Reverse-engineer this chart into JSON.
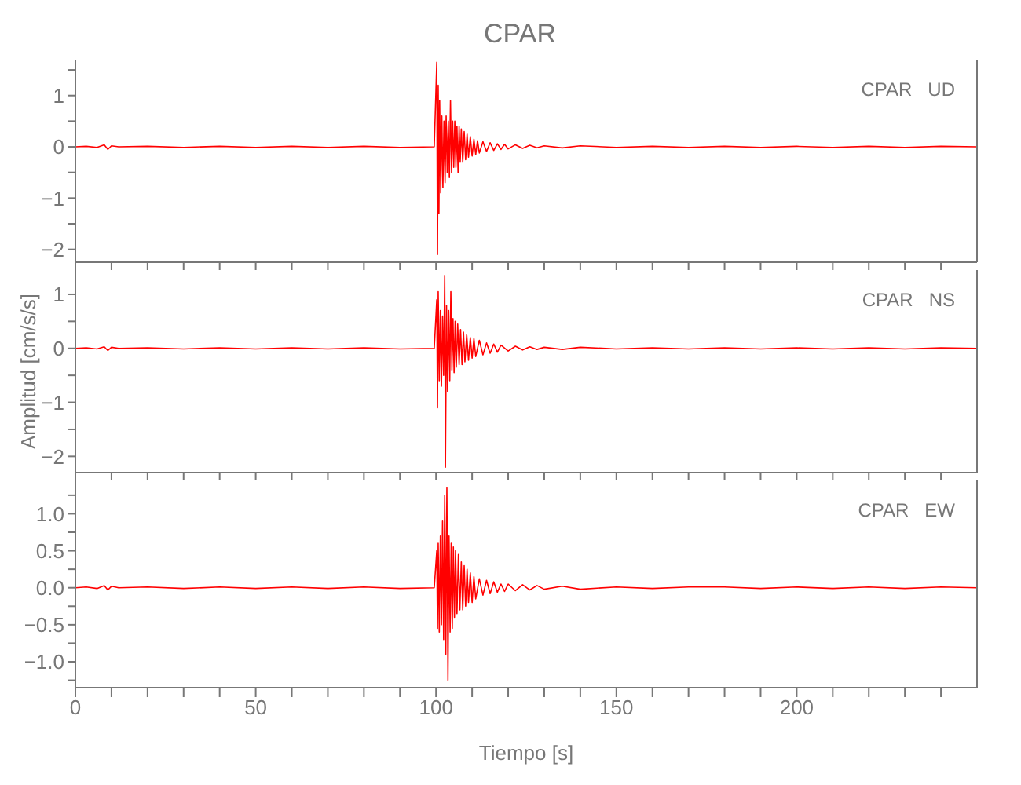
{
  "chart_data": [
    {
      "type": "line",
      "title": "CPAR",
      "annotations": [
        "CPAR   UD"
      ],
      "color": "#ff0000",
      "tick_labels": "y",
      "xlim": [
        0,
        250
      ],
      "ylim": [
        -2.25,
        1.7
      ],
      "xticks": [
        0,
        {
          "value": 10,
          "label": null
        },
        {
          "value": 20,
          "label": null
        },
        {
          "value": 30,
          "label": null
        },
        {
          "value": 40,
          "label": null
        },
        50,
        {
          "value": 60,
          "label": null
        },
        {
          "value": 70,
          "label": null
        },
        {
          "value": 80,
          "label": null
        },
        {
          "value": 90,
          "label": null
        },
        100,
        {
          "value": 110,
          "label": null
        },
        {
          "value": 120,
          "label": null
        },
        {
          "value": 130,
          "label": null
        },
        {
          "value": 140,
          "label": null
        },
        150,
        {
          "value": 160,
          "label": null
        },
        {
          "value": 170,
          "label": null
        },
        {
          "value": 180,
          "label": null
        },
        {
          "value": 190,
          "label": null
        },
        200,
        {
          "value": 210,
          "label": null
        },
        {
          "value": 220,
          "label": null
        },
        {
          "value": 230,
          "label": null
        },
        {
          "value": 240,
          "label": null
        }
      ],
      "yticks": [
        -2,
        {
          "value": -1.5,
          "label": null
        },
        -1,
        {
          "value": -0.5,
          "label": null
        },
        0,
        {
          "value": 0.5,
          "label": null
        },
        1,
        {
          "value": 1.5,
          "label": null
        }
      ],
      "x": [
        0,
        3,
        6,
        8,
        9,
        10,
        12,
        20,
        30,
        40,
        50,
        60,
        70,
        80,
        90,
        99.5,
        100.2,
        100.4,
        100.6,
        100.8,
        101,
        101.3,
        101.6,
        101.9,
        102.2,
        102.5,
        102.8,
        103.1,
        103.4,
        103.7,
        104,
        104.3,
        104.6,
        104.9,
        105.2,
        105.5,
        105.8,
        106.1,
        106.4,
        106.7,
        107,
        107.4,
        107.8,
        108.2,
        108.6,
        109,
        109.5,
        110,
        110.5,
        111,
        111.5,
        112,
        113,
        114,
        115,
        116,
        117,
        118,
        119,
        120,
        122,
        124,
        126,
        128,
        130,
        135,
        140,
        150,
        160,
        170,
        180,
        190,
        200,
        210,
        220,
        230,
        240,
        250
      ],
      "values": [
        0,
        0.01,
        -0.01,
        0.04,
        -0.05,
        0.02,
        0,
        0.01,
        -0.01,
        0.01,
        -0.01,
        0.01,
        -0.01,
        0.01,
        -0.01,
        0,
        1.65,
        -2.1,
        1.2,
        -1.3,
        0.9,
        -0.9,
        0.6,
        -0.8,
        0.5,
        -0.7,
        0.6,
        -0.5,
        0.5,
        -0.6,
        0.9,
        -0.5,
        0.5,
        -0.4,
        0.5,
        -0.4,
        0.4,
        -0.5,
        0.4,
        -0.3,
        0.35,
        -0.3,
        0.3,
        -0.25,
        0.25,
        -0.2,
        0.2,
        -0.18,
        0.15,
        -0.15,
        0.12,
        -0.12,
        0.1,
        -0.09,
        0.08,
        -0.07,
        0.06,
        -0.05,
        0.05,
        -0.04,
        0.04,
        -0.03,
        0.03,
        -0.02,
        0.02,
        -0.02,
        0.02,
        -0.01,
        0.01,
        -0.01,
        0.01,
        -0.01,
        0.01,
        -0.01,
        0.01,
        -0.01,
        0.01,
        0
      ]
    },
    {
      "type": "line",
      "ylabel": "Amplitud [cm/s/s]",
      "annotations": [
        "CPAR   NS"
      ],
      "color": "#ff0000",
      "tick_labels": "y",
      "xlim": [
        0,
        250
      ],
      "ylim": [
        -2.3,
        1.45
      ],
      "xticks": [
        0,
        {
          "value": 10,
          "label": null
        },
        {
          "value": 20,
          "label": null
        },
        {
          "value": 30,
          "label": null
        },
        {
          "value": 40,
          "label": null
        },
        50,
        {
          "value": 60,
          "label": null
        },
        {
          "value": 70,
          "label": null
        },
        {
          "value": 80,
          "label": null
        },
        {
          "value": 90,
          "label": null
        },
        100,
        {
          "value": 110,
          "label": null
        },
        {
          "value": 120,
          "label": null
        },
        {
          "value": 130,
          "label": null
        },
        {
          "value": 140,
          "label": null
        },
        150,
        {
          "value": 160,
          "label": null
        },
        {
          "value": 170,
          "label": null
        },
        {
          "value": 180,
          "label": null
        },
        {
          "value": 190,
          "label": null
        },
        200,
        {
          "value": 210,
          "label": null
        },
        {
          "value": 220,
          "label": null
        },
        {
          "value": 230,
          "label": null
        },
        {
          "value": 240,
          "label": null
        }
      ],
      "yticks": [
        -2,
        {
          "value": -1.5,
          "label": null
        },
        -1,
        {
          "value": -0.5,
          "label": null
        },
        0,
        {
          "value": 0.5,
          "label": null
        },
        1
      ],
      "x": [
        0,
        3,
        6,
        8,
        9,
        10,
        12,
        20,
        30,
        40,
        50,
        60,
        70,
        80,
        90,
        99.5,
        100.2,
        100.4,
        100.6,
        100.9,
        101.2,
        101.5,
        101.8,
        102.1,
        102.4,
        102.6,
        102.9,
        103.2,
        103.5,
        103.8,
        104.1,
        104.4,
        104.7,
        105,
        105.3,
        105.6,
        106,
        106.4,
        106.8,
        107.2,
        107.6,
        108,
        108.5,
        109,
        109.5,
        110,
        110.5,
        111,
        112,
        113,
        114,
        115,
        116,
        117,
        118,
        120,
        122,
        124,
        126,
        128,
        130,
        135,
        140,
        150,
        160,
        170,
        180,
        190,
        200,
        210,
        220,
        230,
        240,
        250
      ],
      "values": [
        0,
        0.01,
        -0.01,
        0.03,
        -0.04,
        0.02,
        0,
        0.01,
        -0.01,
        0.01,
        -0.01,
        0.01,
        -0.01,
        0.01,
        -0.01,
        0,
        0.9,
        -1.1,
        1.05,
        -0.6,
        0.7,
        -0.7,
        0.6,
        -0.5,
        1.35,
        -2.2,
        0.8,
        -0.8,
        0.7,
        -0.6,
        1.05,
        -0.4,
        0.55,
        -0.45,
        0.5,
        -0.35,
        0.45,
        -0.3,
        0.35,
        -0.3,
        0.3,
        -0.25,
        0.25,
        -0.22,
        0.2,
        -0.18,
        0.18,
        -0.15,
        0.15,
        -0.12,
        0.1,
        -0.09,
        0.08,
        -0.07,
        0.06,
        -0.05,
        0.04,
        -0.03,
        0.03,
        -0.02,
        0.02,
        -0.02,
        0.02,
        -0.01,
        0.01,
        -0.01,
        0.01,
        -0.01,
        0.01,
        -0.01,
        0.01,
        -0.01,
        0.01,
        0
      ]
    },
    {
      "type": "line",
      "xlabel": "Tiempo [s]",
      "annotations": [
        "CPAR   EW"
      ],
      "color": "#ff0000",
      "xlim": [
        0,
        250
      ],
      "ylim": [
        -1.35,
        1.45
      ],
      "xticks": [
        0,
        {
          "value": 10,
          "label": null
        },
        {
          "value": 20,
          "label": null
        },
        {
          "value": 30,
          "label": null
        },
        {
          "value": 40,
          "label": null
        },
        50,
        {
          "value": 60,
          "label": null
        },
        {
          "value": 70,
          "label": null
        },
        {
          "value": 80,
          "label": null
        },
        {
          "value": 90,
          "label": null
        },
        100,
        {
          "value": 110,
          "label": null
        },
        {
          "value": 120,
          "label": null
        },
        {
          "value": 130,
          "label": null
        },
        {
          "value": 140,
          "label": null
        },
        150,
        {
          "value": 160,
          "label": null
        },
        {
          "value": 170,
          "label": null
        },
        {
          "value": 180,
          "label": null
        },
        {
          "value": 190,
          "label": null
        },
        200,
        {
          "value": 210,
          "label": null
        },
        {
          "value": 220,
          "label": null
        },
        {
          "value": 230,
          "label": null
        },
        {
          "value": 240,
          "label": null
        }
      ],
      "yticks": [
        {
          "value": -1.25,
          "label": null
        },
        {
          "value": -1,
          "label": "−1.0"
        },
        {
          "value": -0.75,
          "label": null
        },
        {
          "value": -0.5,
          "label": "−0.5"
        },
        {
          "value": -0.25,
          "label": null
        },
        {
          "value": 0,
          "label": "0.0"
        },
        {
          "value": 0.25,
          "label": null
        },
        {
          "value": 0.5,
          "label": "0.5"
        },
        {
          "value": 0.75,
          "label": null
        },
        {
          "value": 1,
          "label": "1.0"
        },
        {
          "value": 1.25,
          "label": null
        }
      ],
      "x": [
        0,
        3,
        6,
        8,
        9,
        10,
        12,
        20,
        30,
        40,
        50,
        60,
        70,
        80,
        90,
        99.5,
        100.2,
        100.4,
        100.6,
        100.9,
        101.2,
        101.5,
        101.8,
        102.1,
        102.4,
        102.7,
        103,
        103.3,
        103.6,
        103.9,
        104.2,
        104.5,
        104.8,
        105.1,
        105.4,
        105.8,
        106.2,
        106.6,
        107,
        107.4,
        107.8,
        108.2,
        108.6,
        109,
        109.5,
        110,
        110.5,
        111,
        112,
        113,
        114,
        115,
        116,
        117,
        118,
        119,
        120,
        122,
        124,
        126,
        128,
        130,
        135,
        140,
        150,
        160,
        170,
        180,
        190,
        200,
        210,
        220,
        230,
        240,
        250
      ],
      "values": [
        0,
        0.01,
        -0.01,
        0.03,
        -0.03,
        0.02,
        0,
        0.01,
        -0.01,
        0.01,
        -0.01,
        0.01,
        -0.01,
        0.01,
        -0.01,
        0,
        0.5,
        -0.55,
        0.6,
        -0.6,
        0.7,
        -0.5,
        0.9,
        -0.7,
        1.25,
        -0.9,
        1.35,
        -1.25,
        0.7,
        -0.6,
        0.6,
        -0.55,
        0.55,
        -0.4,
        0.5,
        -0.35,
        0.45,
        -0.3,
        0.35,
        -0.3,
        0.3,
        -0.25,
        0.25,
        -0.2,
        0.2,
        -0.2,
        0.15,
        -0.15,
        0.12,
        -0.1,
        0.1,
        -0.08,
        0.08,
        -0.06,
        0.05,
        -0.05,
        0.05,
        -0.04,
        0.04,
        -0.03,
        0.03,
        -0.02,
        0.02,
        -0.02,
        0.01,
        -0.01,
        0.01,
        0.01,
        -0.01,
        0.01,
        -0.01,
        0.01,
        -0.01,
        0.01,
        0
      ]
    }
  ]
}
